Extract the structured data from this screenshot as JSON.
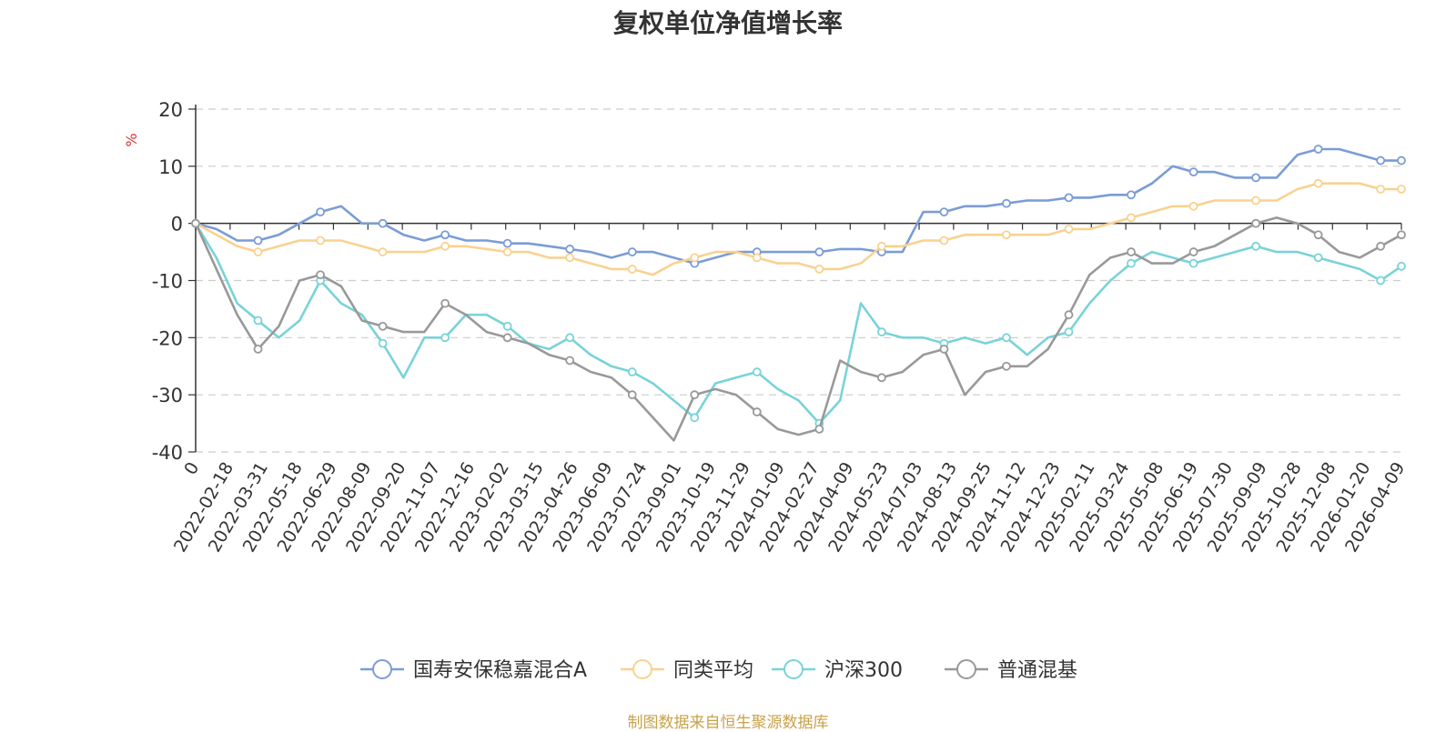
{
  "source_note": "制图数据来自恒生聚源数据库",
  "chart_data": {
    "type": "line",
    "title": "复权单位净值增长率",
    "ylabel": "%",
    "xlabel": "",
    "ylim": [
      -40,
      20
    ],
    "yticks": [
      20,
      10,
      0,
      -10,
      -20,
      -30,
      -40
    ],
    "grid": "horizontal dashed",
    "legend_position": "bottom-center",
    "x_tick_labels": [
      "0",
      "2022-02-18",
      "2022-03-31",
      "2022-05-18",
      "2022-06-29",
      "2022-08-09",
      "2022-09-20",
      "2022-11-07",
      "2022-12-16",
      "2023-02-02",
      "2023-03-15",
      "2023-04-26",
      "2023-06-09",
      "2023-07-24",
      "2023-09-01",
      "2023-10-19",
      "2023-11-29",
      "2024-01-09",
      "2024-02-27",
      "2024-04-09",
      "2024-05-23",
      "2024-07-03",
      "2024-08-13",
      "2024-09-25",
      "2024-11-12",
      "2024-12-23",
      "2025-02-11",
      "2025-03-24",
      "2025-05-08",
      "2025-06-19",
      "2025-07-30",
      "2025-09-09",
      "2025-10-28",
      "2025-12-08",
      "2026-01-20",
      "2026-04-09"
    ],
    "series": [
      {
        "name": "国寿安保稳嘉混合A",
        "color": "#7b9cd6",
        "values": [
          0,
          -1,
          -3,
          -3,
          -2,
          0,
          2,
          3,
          0,
          0,
          -2,
          -3,
          -2,
          -3,
          -3,
          -3.5,
          -3.5,
          -4,
          -4.5,
          -5,
          -6,
          -5,
          -5,
          -6,
          -7,
          -6,
          -5,
          -5,
          -5,
          -5,
          -5,
          -4.5,
          -4.5,
          -5,
          -5,
          2,
          2,
          3,
          3,
          3.5,
          4,
          4,
          4.5,
          4.5,
          5,
          5,
          7,
          10,
          9,
          9,
          8,
          8,
          8,
          12,
          13,
          13,
          12,
          11,
          11
        ]
      },
      {
        "name": "同类平均",
        "color": "#f9d28f",
        "values": [
          0,
          -2,
          -4,
          -5,
          -4,
          -3,
          -3,
          -3,
          -4,
          -5,
          -5,
          -5,
          -4,
          -4,
          -4.5,
          -5,
          -5,
          -6,
          -6,
          -7,
          -8,
          -8,
          -9,
          -7,
          -6,
          -5,
          -5,
          -6,
          -7,
          -7,
          -8,
          -8,
          -7,
          -4,
          -4,
          -3,
          -3,
          -2,
          -2,
          -2,
          -2,
          -2,
          -1,
          -1,
          0,
          1,
          2,
          3,
          3,
          4,
          4,
          4,
          4,
          6,
          7,
          7,
          7,
          6,
          6
        ]
      },
      {
        "name": "沪深300",
        "color": "#79d3d8",
        "values": [
          0,
          -6,
          -14,
          -17,
          -20,
          -17,
          -10,
          -14,
          -16,
          -21,
          -27,
          -20,
          -20,
          -16,
          -16,
          -18,
          -21,
          -22,
          -20,
          -23,
          -25,
          -26,
          -28,
          -31,
          -34,
          -28,
          -27,
          -26,
          -29,
          -31,
          -35,
          -31,
          -14,
          -19,
          -20,
          -20,
          -21,
          -20,
          -21,
          -20,
          -23,
          -20,
          -19,
          -14,
          -10,
          -7,
          -5,
          -6,
          -7,
          -6,
          -5,
          -4,
          -5,
          -5,
          -6,
          -7,
          -8,
          -10,
          -7.5
        ]
      },
      {
        "name": "普通混基",
        "color": "#999999",
        "values": [
          0,
          -8,
          -16,
          -22,
          -18,
          -10,
          -9,
          -11,
          -17,
          -18,
          -19,
          -19,
          -14,
          -16,
          -19,
          -20,
          -21,
          -23,
          -24,
          -26,
          -27,
          -30,
          -34,
          -38,
          -30,
          -29,
          -30,
          -33,
          -36,
          -37,
          -36,
          -24,
          -26,
          -27,
          -26,
          -23,
          -22,
          -30,
          -26,
          -25,
          -25,
          -22,
          -16,
          -9,
          -6,
          -5,
          -7,
          -7,
          -5,
          -4,
          -2,
          0,
          1,
          0,
          -2,
          -5,
          -6,
          -4,
          -2
        ]
      }
    ]
  }
}
